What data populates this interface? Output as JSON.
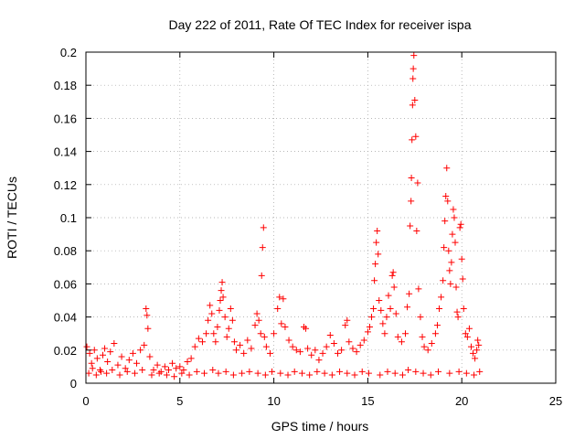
{
  "chart_data": {
    "type": "scatter",
    "title": "Day 222 of 2011, Rate Of TEC Index for receiver ispa",
    "xlabel": "GPS time / hours",
    "ylabel": "ROTI / TECUs",
    "xlim": [
      0,
      25
    ],
    "ylim": [
      0,
      0.2
    ],
    "xticks": [
      "0",
      "5",
      "10",
      "15",
      "20",
      "25"
    ],
    "yticks": [
      "0",
      "0.02",
      "0.04",
      "0.06",
      "0.08",
      "0.1",
      "0.12",
      "0.14",
      "0.16",
      "0.18",
      "0.2"
    ],
    "grid": true,
    "marker": "+",
    "marker_color": "#ff0000",
    "series": [
      {
        "points": [
          [
            0.05,
            0.022
          ],
          [
            0.2,
            0.018
          ],
          [
            0.3,
            0.012
          ],
          [
            0.45,
            0.02
          ],
          [
            0.6,
            0.015
          ],
          [
            0.75,
            0.008
          ],
          [
            0.9,
            0.017
          ],
          [
            1.0,
            0.021
          ],
          [
            1.15,
            0.013
          ],
          [
            1.3,
            0.019
          ],
          [
            1.5,
            0.024
          ],
          [
            1.7,
            0.011
          ],
          [
            1.9,
            0.016
          ],
          [
            2.1,
            0.009
          ],
          [
            2.3,
            0.014
          ],
          [
            2.5,
            0.018
          ],
          [
            2.7,
            0.012
          ],
          [
            2.9,
            0.02
          ],
          [
            3.1,
            0.023
          ],
          [
            3.2,
            0.045
          ],
          [
            3.25,
            0.041
          ],
          [
            3.3,
            0.033
          ],
          [
            3.4,
            0.016
          ],
          [
            3.6,
            0.008
          ],
          [
            3.8,
            0.011
          ],
          [
            4.0,
            0.007
          ],
          [
            4.2,
            0.01
          ],
          [
            4.4,
            0.008
          ],
          [
            4.6,
            0.012
          ],
          [
            4.8,
            0.009
          ],
          [
            5.0,
            0.01
          ],
          [
            5.2,
            0.008
          ],
          [
            5.4,
            0.013
          ],
          [
            5.6,
            0.015
          ],
          [
            5.8,
            0.022
          ],
          [
            6.0,
            0.027
          ],
          [
            6.2,
            0.025
          ],
          [
            6.4,
            0.03
          ],
          [
            6.5,
            0.038
          ],
          [
            6.6,
            0.047
          ],
          [
            6.7,
            0.042
          ],
          [
            6.8,
            0.03
          ],
          [
            6.9,
            0.025
          ],
          [
            7.0,
            0.034
          ],
          [
            7.1,
            0.044
          ],
          [
            7.15,
            0.05
          ],
          [
            7.2,
            0.056
          ],
          [
            7.25,
            0.061
          ],
          [
            7.3,
            0.052
          ],
          [
            7.4,
            0.04
          ],
          [
            7.5,
            0.028
          ],
          [
            7.6,
            0.033
          ],
          [
            7.7,
            0.045
          ],
          [
            7.8,
            0.038
          ],
          [
            7.9,
            0.025
          ],
          [
            8.0,
            0.02
          ],
          [
            8.2,
            0.023
          ],
          [
            8.4,
            0.018
          ],
          [
            8.6,
            0.026
          ],
          [
            8.8,
            0.021
          ],
          [
            9.0,
            0.035
          ],
          [
            9.1,
            0.042
          ],
          [
            9.2,
            0.038
          ],
          [
            9.3,
            0.03
          ],
          [
            9.35,
            0.065
          ],
          [
            9.4,
            0.082
          ],
          [
            9.45,
            0.094
          ],
          [
            9.5,
            0.028
          ],
          [
            9.6,
            0.022
          ],
          [
            9.8,
            0.018
          ],
          [
            10.0,
            0.03
          ],
          [
            10.2,
            0.045
          ],
          [
            10.3,
            0.052
          ],
          [
            10.4,
            0.036
          ],
          [
            10.5,
            0.051
          ],
          [
            10.6,
            0.034
          ],
          [
            10.8,
            0.026
          ],
          [
            11.0,
            0.022
          ],
          [
            11.2,
            0.02
          ],
          [
            11.4,
            0.019
          ],
          [
            11.6,
            0.034
          ],
          [
            11.7,
            0.033
          ],
          [
            11.8,
            0.021
          ],
          [
            12.0,
            0.017
          ],
          [
            12.2,
            0.02
          ],
          [
            12.4,
            0.014
          ],
          [
            12.6,
            0.018
          ],
          [
            12.8,
            0.022
          ],
          [
            13.0,
            0.029
          ],
          [
            13.2,
            0.024
          ],
          [
            13.4,
            0.018
          ],
          [
            13.6,
            0.02
          ],
          [
            13.8,
            0.035
          ],
          [
            13.9,
            0.038
          ],
          [
            14.0,
            0.025
          ],
          [
            14.2,
            0.021
          ],
          [
            14.4,
            0.019
          ],
          [
            14.6,
            0.023
          ],
          [
            14.8,
            0.026
          ],
          [
            15.0,
            0.031
          ],
          [
            15.1,
            0.034
          ],
          [
            15.2,
            0.04
          ],
          [
            15.3,
            0.045
          ],
          [
            15.35,
            0.062
          ],
          [
            15.4,
            0.072
          ],
          [
            15.45,
            0.085
          ],
          [
            15.5,
            0.092
          ],
          [
            15.55,
            0.078
          ],
          [
            15.6,
            0.05
          ],
          [
            15.7,
            0.044
          ],
          [
            15.8,
            0.036
          ],
          [
            15.9,
            0.03
          ],
          [
            16.0,
            0.04
          ],
          [
            16.1,
            0.053
          ],
          [
            16.2,
            0.045
          ],
          [
            16.3,
            0.065
          ],
          [
            16.35,
            0.067
          ],
          [
            16.4,
            0.058
          ],
          [
            16.5,
            0.042
          ],
          [
            16.6,
            0.028
          ],
          [
            16.8,
            0.025
          ],
          [
            17.0,
            0.03
          ],
          [
            17.1,
            0.046
          ],
          [
            17.2,
            0.054
          ],
          [
            17.25,
            0.095
          ],
          [
            17.3,
            0.11
          ],
          [
            17.32,
            0.124
          ],
          [
            17.35,
            0.147
          ],
          [
            17.38,
            0.168
          ],
          [
            17.4,
            0.184
          ],
          [
            17.42,
            0.19
          ],
          [
            17.45,
            0.198
          ],
          [
            17.5,
            0.171
          ],
          [
            17.55,
            0.149
          ],
          [
            17.6,
            0.092
          ],
          [
            17.65,
            0.121
          ],
          [
            17.7,
            0.057
          ],
          [
            17.8,
            0.04
          ],
          [
            17.9,
            0.028
          ],
          [
            18.0,
            0.022
          ],
          [
            18.2,
            0.02
          ],
          [
            18.4,
            0.024
          ],
          [
            18.6,
            0.03
          ],
          [
            18.7,
            0.035
          ],
          [
            18.8,
            0.045
          ],
          [
            18.9,
            0.052
          ],
          [
            19.0,
            0.062
          ],
          [
            19.05,
            0.082
          ],
          [
            19.1,
            0.098
          ],
          [
            19.15,
            0.113
          ],
          [
            19.2,
            0.13
          ],
          [
            19.25,
            0.11
          ],
          [
            19.3,
            0.08
          ],
          [
            19.35,
            0.068
          ],
          [
            19.4,
            0.06
          ],
          [
            19.45,
            0.073
          ],
          [
            19.5,
            0.09
          ],
          [
            19.55,
            0.105
          ],
          [
            19.6,
            0.1
          ],
          [
            19.65,
            0.085
          ],
          [
            19.7,
            0.058
          ],
          [
            19.75,
            0.043
          ],
          [
            19.8,
            0.04
          ],
          [
            19.9,
            0.094
          ],
          [
            19.95,
            0.096
          ],
          [
            20.0,
            0.075
          ],
          [
            20.05,
            0.063
          ],
          [
            20.1,
            0.045
          ],
          [
            20.2,
            0.03
          ],
          [
            20.3,
            0.028
          ],
          [
            20.4,
            0.033
          ],
          [
            20.5,
            0.022
          ],
          [
            20.6,
            0.018
          ],
          [
            20.7,
            0.015
          ],
          [
            20.8,
            0.02
          ],
          [
            20.85,
            0.026
          ],
          [
            20.9,
            0.023
          ],
          [
            0.15,
            0.006
          ],
          [
            0.35,
            0.009
          ],
          [
            0.55,
            0.005
          ],
          [
            0.8,
            0.007
          ],
          [
            1.1,
            0.006
          ],
          [
            1.4,
            0.008
          ],
          [
            1.8,
            0.005
          ],
          [
            2.2,
            0.007
          ],
          [
            2.6,
            0.006
          ],
          [
            3.0,
            0.008
          ],
          [
            3.5,
            0.005
          ],
          [
            3.9,
            0.006
          ],
          [
            4.3,
            0.005
          ],
          [
            4.7,
            0.004
          ],
          [
            5.1,
            0.006
          ],
          [
            5.5,
            0.005
          ],
          [
            5.9,
            0.007
          ],
          [
            6.3,
            0.006
          ],
          [
            6.75,
            0.008
          ],
          [
            7.05,
            0.006
          ],
          [
            7.45,
            0.007
          ],
          [
            7.85,
            0.005
          ],
          [
            8.3,
            0.006
          ],
          [
            8.7,
            0.007
          ],
          [
            9.15,
            0.006
          ],
          [
            9.55,
            0.005
          ],
          [
            9.9,
            0.007
          ],
          [
            10.35,
            0.006
          ],
          [
            10.75,
            0.005
          ],
          [
            11.1,
            0.007
          ],
          [
            11.5,
            0.006
          ],
          [
            11.9,
            0.005
          ],
          [
            12.3,
            0.007
          ],
          [
            12.7,
            0.006
          ],
          [
            13.1,
            0.005
          ],
          [
            13.5,
            0.007
          ],
          [
            13.9,
            0.006
          ],
          [
            14.3,
            0.005
          ],
          [
            14.7,
            0.007
          ],
          [
            15.05,
            0.006
          ],
          [
            15.65,
            0.005
          ],
          [
            16.05,
            0.007
          ],
          [
            16.45,
            0.006
          ],
          [
            16.85,
            0.005
          ],
          [
            17.15,
            0.008
          ],
          [
            17.55,
            0.007
          ],
          [
            17.95,
            0.006
          ],
          [
            18.35,
            0.005
          ],
          [
            18.75,
            0.007
          ],
          [
            19.35,
            0.006
          ],
          [
            19.85,
            0.007
          ],
          [
            20.25,
            0.006
          ],
          [
            20.65,
            0.005
          ],
          [
            20.95,
            0.007
          ]
        ]
      }
    ]
  }
}
